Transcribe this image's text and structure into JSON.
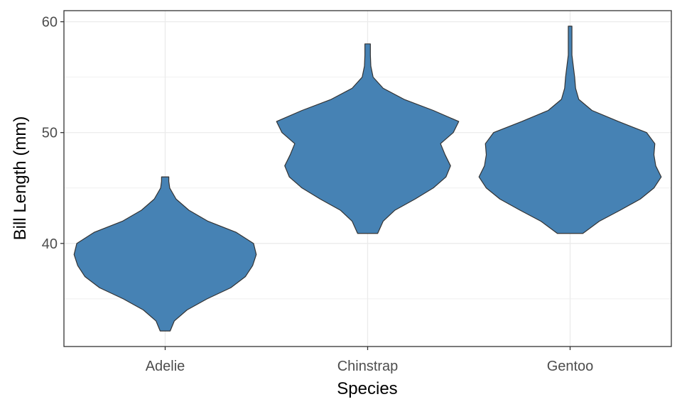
{
  "chart_data": {
    "type": "violin",
    "xlabel": "Species",
    "ylabel": "Bill Length (mm)",
    "categories": [
      "Adelie",
      "Chinstrap",
      "Gentoo"
    ],
    "ylim": [
      30.7,
      61.0
    ],
    "yticks": [
      40,
      50,
      60
    ],
    "grid": true,
    "fill_color": "#4682b4",
    "outline_color": "#333333",
    "violins": [
      {
        "category": "Adelie",
        "min": 32.1,
        "max": 46.0,
        "half_widths": [
          [
            32.1,
            0.055
          ],
          [
            33.0,
            0.1
          ],
          [
            34.0,
            0.24
          ],
          [
            35.0,
            0.46
          ],
          [
            36.0,
            0.72
          ],
          [
            37.0,
            0.88
          ],
          [
            38.0,
            0.96
          ],
          [
            39.0,
            1.0
          ],
          [
            40.0,
            0.97
          ],
          [
            41.0,
            0.78
          ],
          [
            42.0,
            0.47
          ],
          [
            43.0,
            0.26
          ],
          [
            44.0,
            0.12
          ],
          [
            45.0,
            0.05
          ],
          [
            45.6,
            0.04
          ],
          [
            46.0,
            0.04
          ]
        ]
      },
      {
        "category": "Chinstrap",
        "min": 40.9,
        "max": 58.0,
        "half_widths": [
          [
            40.9,
            0.11
          ],
          [
            42.0,
            0.17
          ],
          [
            43.0,
            0.3
          ],
          [
            44.0,
            0.52
          ],
          [
            45.0,
            0.72
          ],
          [
            46.0,
            0.86
          ],
          [
            47.0,
            0.91
          ],
          [
            48.0,
            0.85
          ],
          [
            49.0,
            0.8
          ],
          [
            50.0,
            0.94
          ],
          [
            51.0,
            1.0
          ],
          [
            52.0,
            0.72
          ],
          [
            53.0,
            0.4
          ],
          [
            54.0,
            0.17
          ],
          [
            55.0,
            0.06
          ],
          [
            56.0,
            0.035
          ],
          [
            57.0,
            0.03
          ],
          [
            58.0,
            0.03
          ]
        ]
      },
      {
        "category": "Gentoo",
        "min": 40.9,
        "max": 59.6,
        "half_widths": [
          [
            40.9,
            0.14
          ],
          [
            42.0,
            0.32
          ],
          [
            43.0,
            0.55
          ],
          [
            44.0,
            0.77
          ],
          [
            45.0,
            0.92
          ],
          [
            46.0,
            1.0
          ],
          [
            47.0,
            0.94
          ],
          [
            48.0,
            0.92
          ],
          [
            49.0,
            0.93
          ],
          [
            50.0,
            0.84
          ],
          [
            51.0,
            0.53
          ],
          [
            52.0,
            0.24
          ],
          [
            53.0,
            0.095
          ],
          [
            54.0,
            0.06
          ],
          [
            55.0,
            0.05
          ],
          [
            56.0,
            0.035
          ],
          [
            57.0,
            0.02
          ],
          [
            58.0,
            0.02
          ],
          [
            59.0,
            0.02
          ],
          [
            59.6,
            0.02
          ]
        ]
      }
    ]
  }
}
